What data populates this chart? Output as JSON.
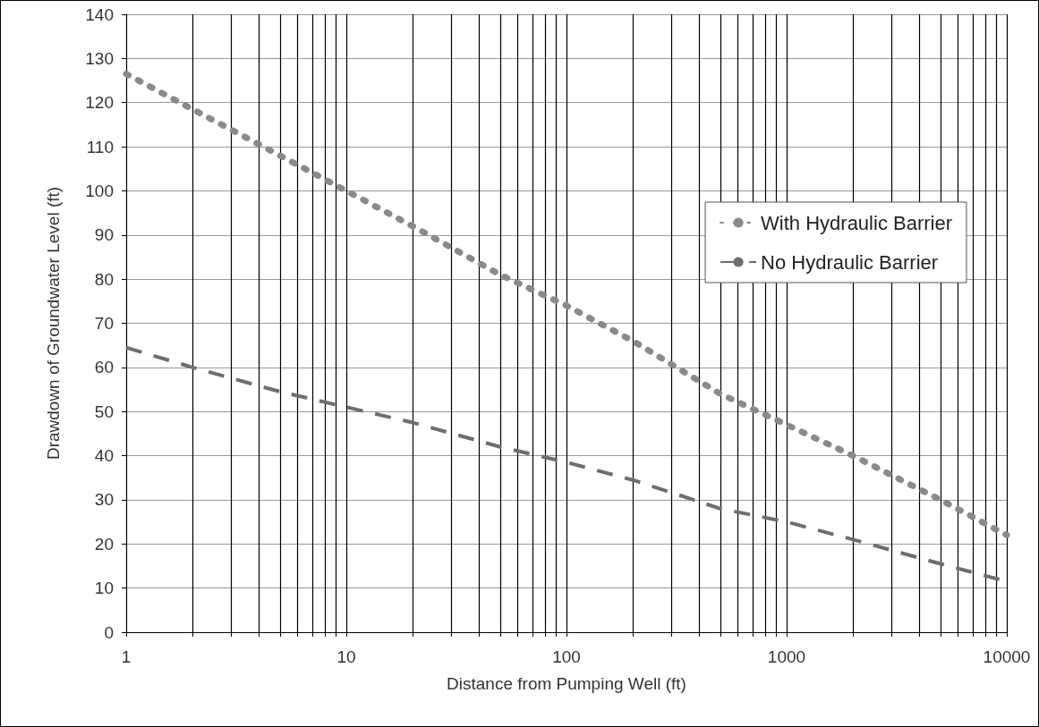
{
  "chart_data": {
    "type": "line",
    "xlabel": "Distance from Pumping Well (ft)",
    "ylabel": "Drawdown of Groundwater Level (ft)",
    "x": [
      1,
      2,
      5,
      10,
      20,
      50,
      100,
      200,
      500,
      1000,
      2000,
      5000,
      10000
    ],
    "series": [
      {
        "name": "With Hydraulic Barrier",
        "color": "#8a8a8a",
        "line_style": "dotted",
        "values": [
          126.5,
          118.5,
          108,
          100,
          92,
          81,
          74,
          66,
          54,
          47,
          40,
          30,
          22
        ]
      },
      {
        "name": "No Hydraulic Barrier",
        "color": "#6e6e6e",
        "line_style": "dashed",
        "values": [
          64.5,
          60,
          54.5,
          51,
          47.5,
          42,
          38.5,
          34.5,
          28,
          25,
          21,
          15.5,
          11.5
        ]
      }
    ],
    "log": "x",
    "xlim": [
      1,
      10000
    ],
    "xticks": [
      1,
      10,
      100,
      1000,
      10000
    ],
    "ylim": [
      0,
      140
    ],
    "yticks": [
      0,
      10,
      20,
      30,
      40,
      50,
      60,
      70,
      80,
      90,
      100,
      110,
      120,
      130,
      140
    ],
    "grid": true,
    "legend": "top right",
    "marker": "none"
  }
}
